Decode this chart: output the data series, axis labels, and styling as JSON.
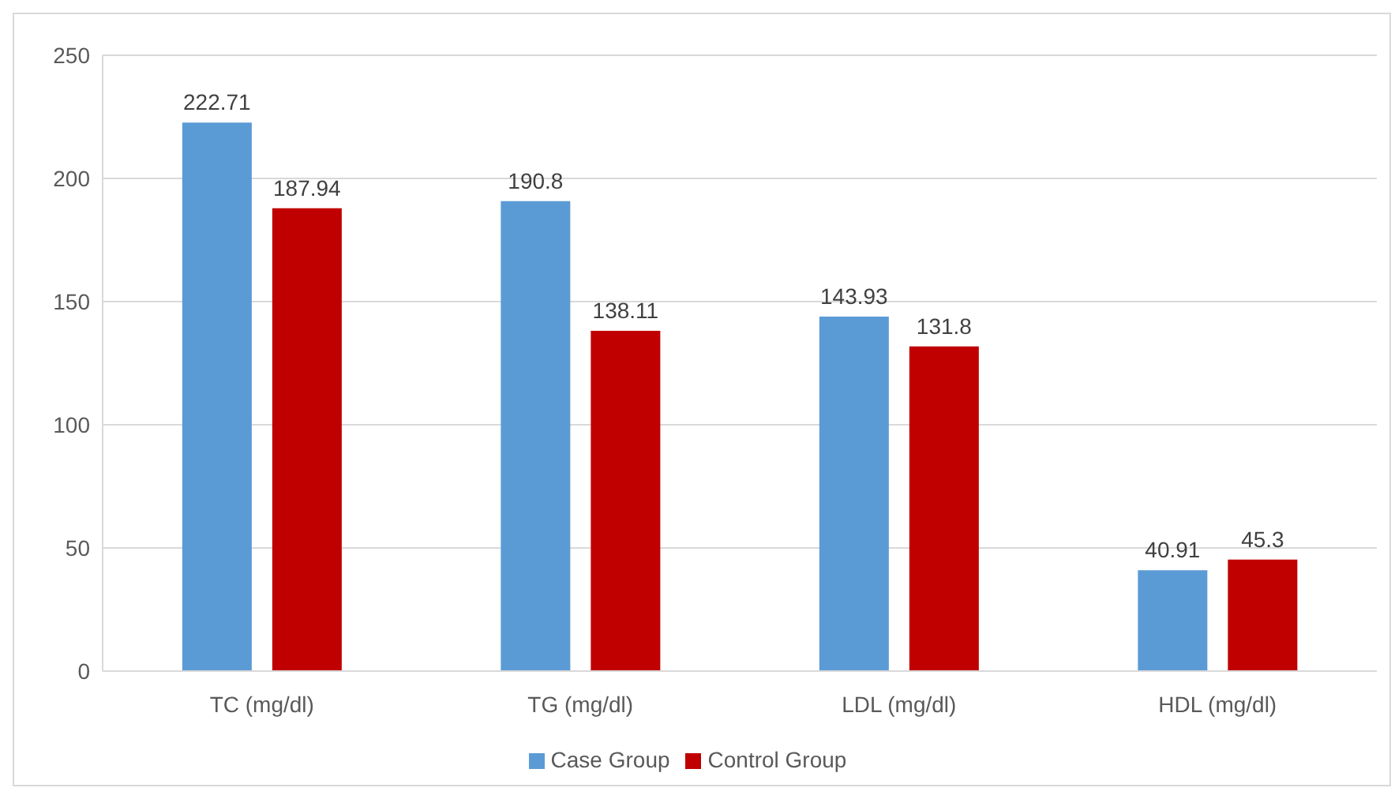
{
  "chart_data": {
    "type": "bar",
    "categories": [
      "TC (mg/dl)",
      "TG (mg/dl)",
      "LDL (mg/dl)",
      "HDL (mg/dl)"
    ],
    "series": [
      {
        "name": "Case Group",
        "color": "#5b9bd5",
        "values": [
          222.71,
          190.8,
          143.93,
          40.91
        ]
      },
      {
        "name": "Control Group",
        "color": "#c00000",
        "values": [
          187.94,
          138.11,
          131.8,
          45.3
        ]
      }
    ],
    "ylim": [
      0,
      250
    ],
    "yticks": [
      0,
      50,
      100,
      150,
      200,
      250
    ],
    "grid": "y",
    "legend": "bottom",
    "data_labels": true
  }
}
